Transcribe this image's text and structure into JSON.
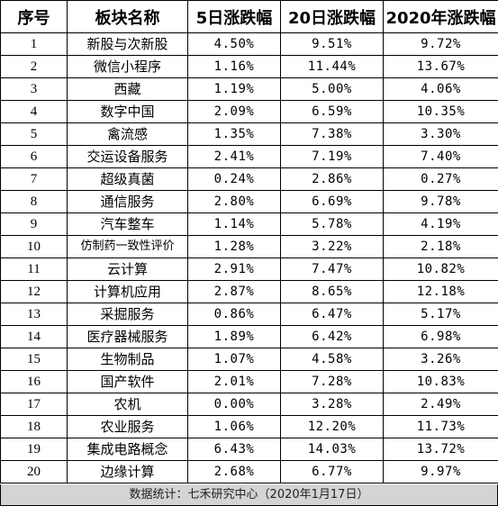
{
  "table": {
    "headers": [
      "序号",
      "板块名称",
      "5日涨跌幅",
      "20日涨跌幅",
      "2020年涨跌幅"
    ],
    "rows": [
      {
        "idx": "1",
        "name": "新股与次新股",
        "d5": "4.50%",
        "d20": "9.51%",
        "ytd": "9.72%"
      },
      {
        "idx": "2",
        "name": "微信小程序",
        "d5": "1.16%",
        "d20": "11.44%",
        "ytd": "13.67%"
      },
      {
        "idx": "3",
        "name": "西藏",
        "d5": "1.19%",
        "d20": "5.00%",
        "ytd": "4.06%"
      },
      {
        "idx": "4",
        "name": "数字中国",
        "d5": "2.09%",
        "d20": "6.59%",
        "ytd": "10.35%"
      },
      {
        "idx": "5",
        "name": "禽流感",
        "d5": "1.35%",
        "d20": "7.38%",
        "ytd": "3.30%"
      },
      {
        "idx": "6",
        "name": "交运设备服务",
        "d5": "2.41%",
        "d20": "7.19%",
        "ytd": "7.40%"
      },
      {
        "idx": "7",
        "name": "超级真菌",
        "d5": "0.24%",
        "d20": "2.86%",
        "ytd": "0.27%"
      },
      {
        "idx": "8",
        "name": "通信服务",
        "d5": "2.80%",
        "d20": "6.69%",
        "ytd": "9.78%"
      },
      {
        "idx": "9",
        "name": "汽车整车",
        "d5": "1.14%",
        "d20": "5.78%",
        "ytd": "4.19%"
      },
      {
        "idx": "10",
        "name": "仿制药一致性评价",
        "d5": "1.28%",
        "d20": "3.22%",
        "ytd": "2.18%"
      },
      {
        "idx": "11",
        "name": "云计算",
        "d5": "2.91%",
        "d20": "7.47%",
        "ytd": "10.82%"
      },
      {
        "idx": "12",
        "name": "计算机应用",
        "d5": "2.87%",
        "d20": "8.65%",
        "ytd": "12.18%"
      },
      {
        "idx": "13",
        "name": "采掘服务",
        "d5": "0.86%",
        "d20": "6.47%",
        "ytd": "5.17%"
      },
      {
        "idx": "14",
        "name": "医疗器械服务",
        "d5": "1.89%",
        "d20": "6.42%",
        "ytd": "6.98%"
      },
      {
        "idx": "15",
        "name": "生物制品",
        "d5": "1.07%",
        "d20": "4.58%",
        "ytd": "3.26%"
      },
      {
        "idx": "16",
        "name": "国产软件",
        "d5": "2.01%",
        "d20": "7.28%",
        "ytd": "10.83%"
      },
      {
        "idx": "17",
        "name": "农机",
        "d5": "0.00%",
        "d20": "3.28%",
        "ytd": "2.49%"
      },
      {
        "idx": "18",
        "name": "农业服务",
        "d5": "1.06%",
        "d20": "12.20%",
        "ytd": "11.73%"
      },
      {
        "idx": "19",
        "name": "集成电路概念",
        "d5": "6.43%",
        "d20": "14.03%",
        "ytd": "13.72%"
      },
      {
        "idx": "20",
        "name": "边缘计算",
        "d5": "2.68%",
        "d20": "6.77%",
        "ytd": "9.97%"
      }
    ]
  },
  "footer": {
    "text": "数据统计：七禾研究中心（2020年1月17日）"
  },
  "colors": {
    "border": "#000000",
    "footer_bg": "#d4d4d4",
    "text": "#000000"
  }
}
